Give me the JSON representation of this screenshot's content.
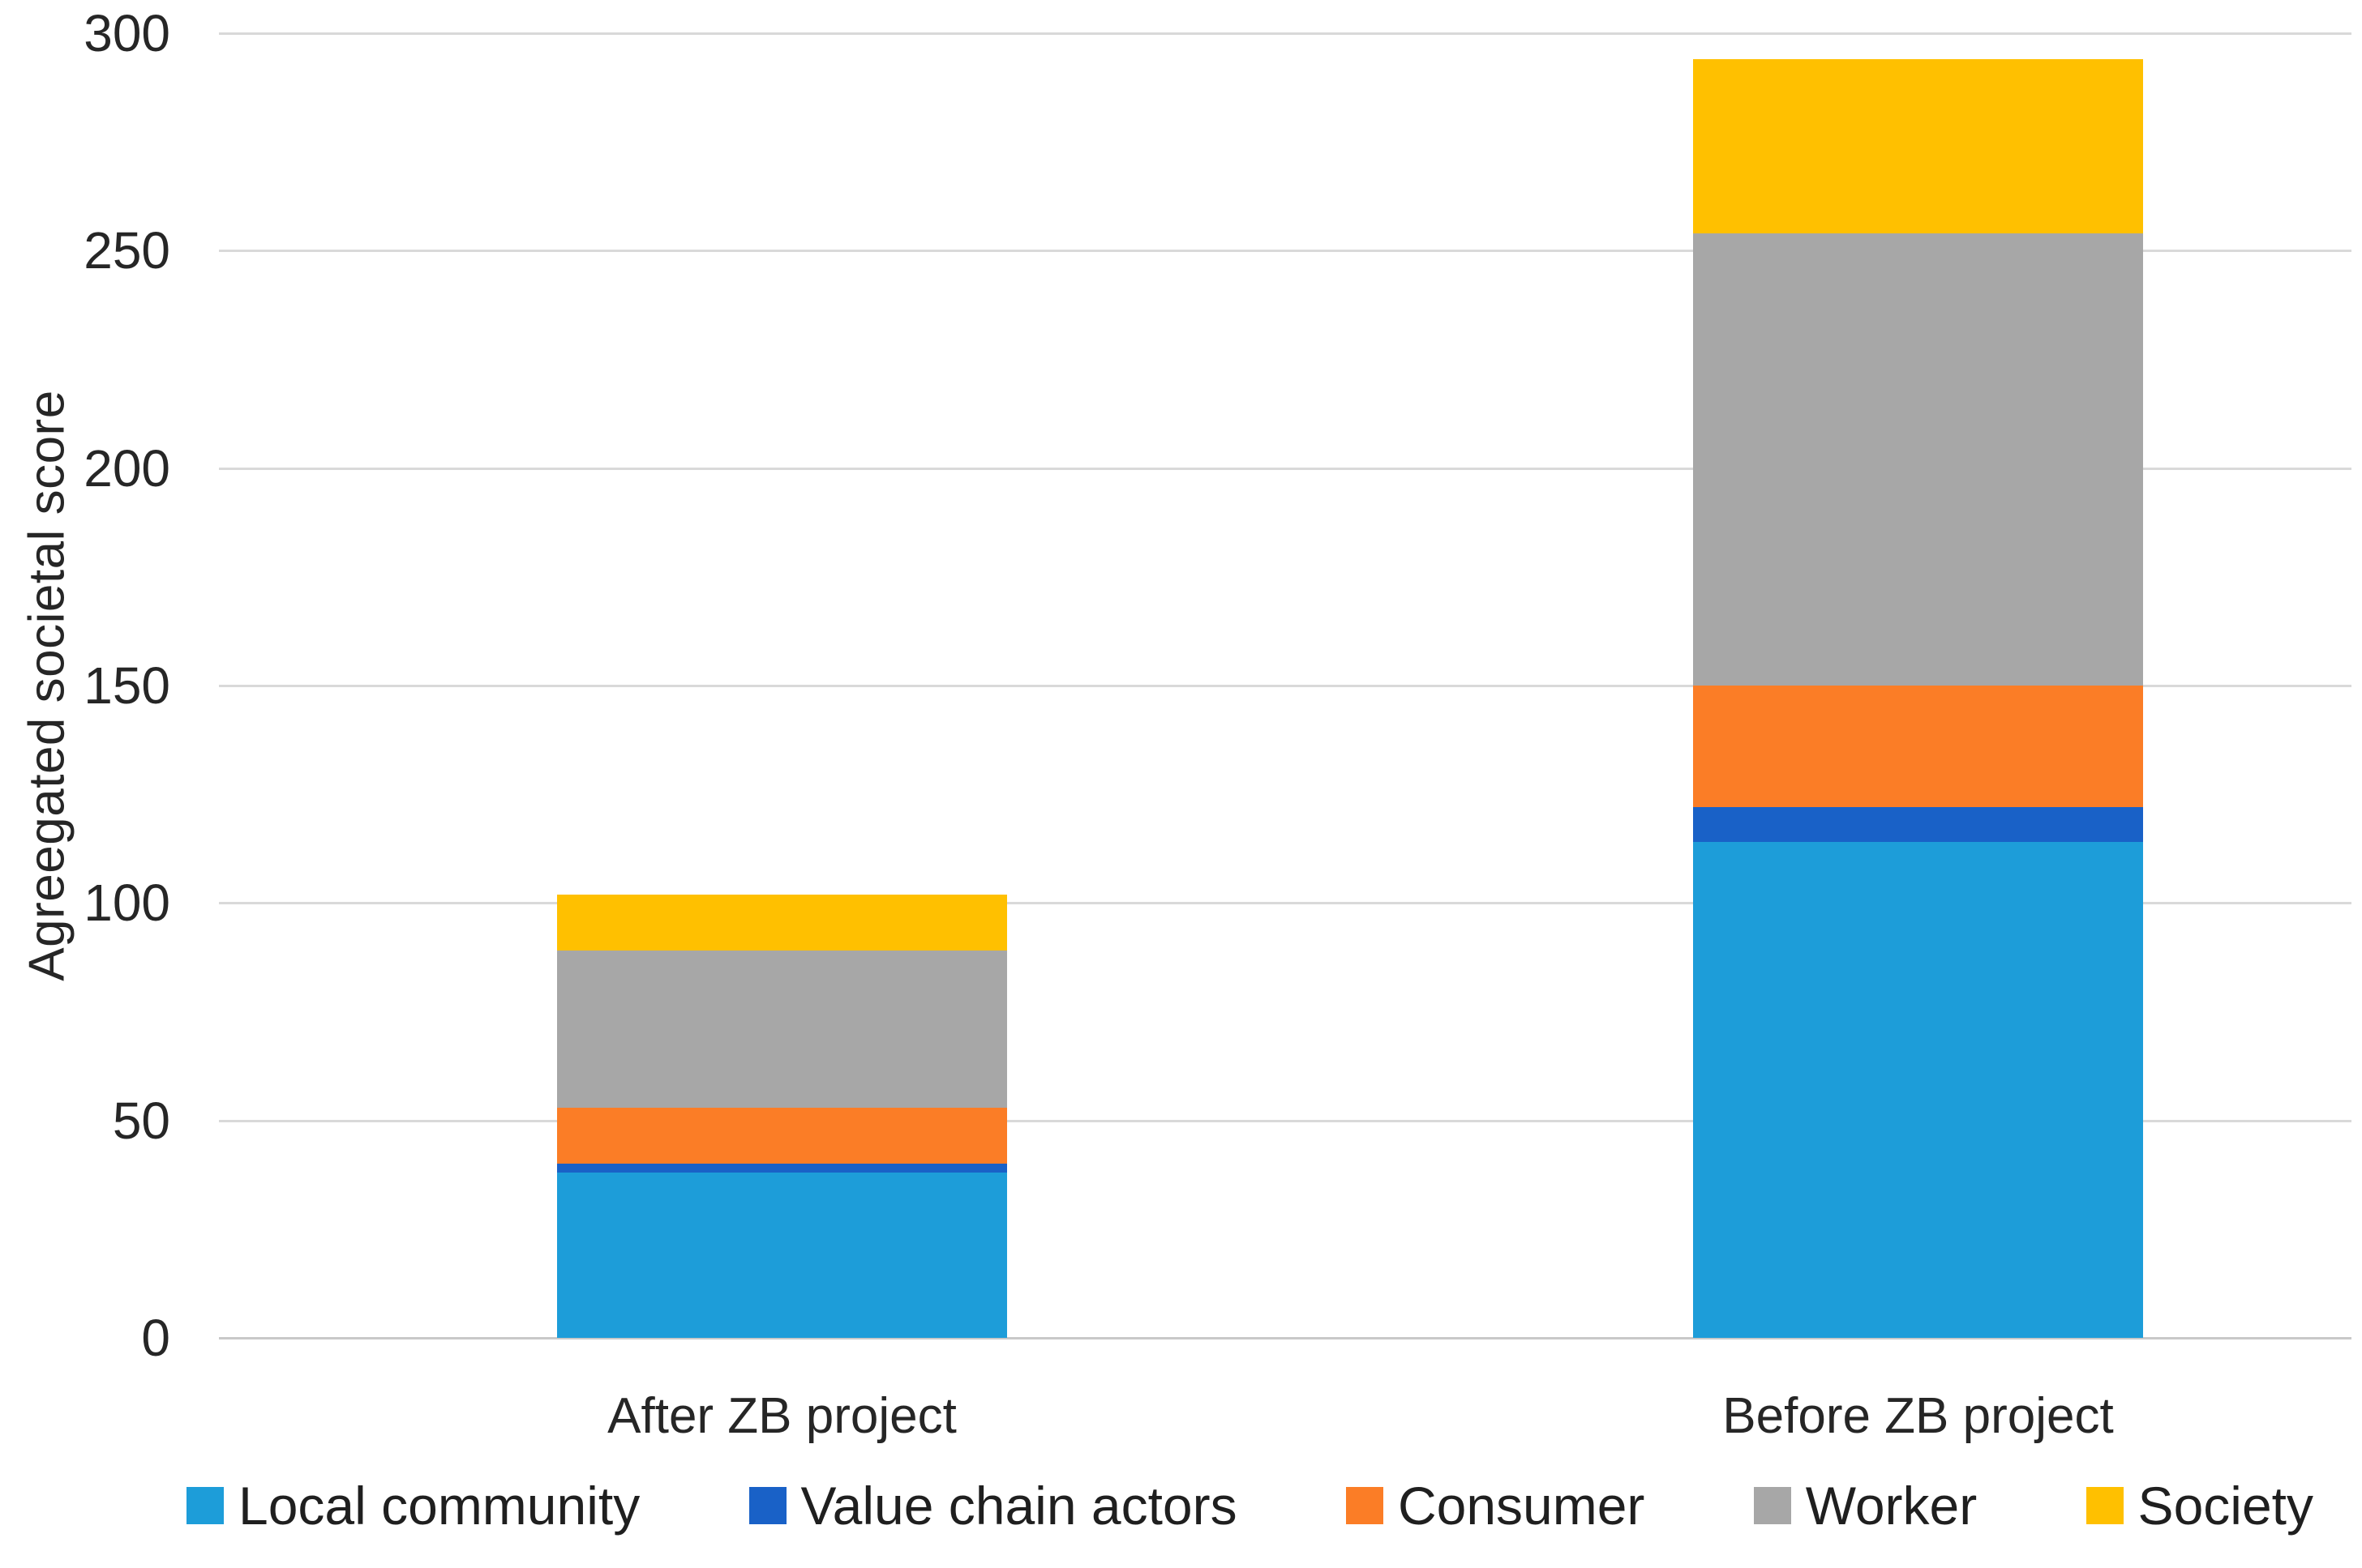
{
  "chart_data": {
    "type": "bar",
    "stacked": true,
    "categories": [
      "After ZB project",
      "Before ZB project"
    ],
    "series": [
      {
        "name": "Local community",
        "color": "#1d9dd9",
        "values": [
          38,
          114
        ]
      },
      {
        "name": "Value chain actors",
        "color": "#1961c7",
        "values": [
          2,
          8
        ]
      },
      {
        "name": "Consumer",
        "color": "#fb7d26",
        "values": [
          13,
          28
        ]
      },
      {
        "name": "Worker",
        "color": "#a7a7a7",
        "values": [
          36,
          104
        ]
      },
      {
        "name": "Society",
        "color": "#ffc000",
        "values": [
          13,
          40
        ]
      }
    ],
    "ylabel": "Agreegated societal score",
    "yticks": [
      "0",
      "50",
      "100",
      "150",
      "200",
      "250",
      "300"
    ],
    "ylim": [
      0,
      300
    ],
    "grid": true,
    "gridline_color": "#d9d9d9",
    "legend_position": "bottom",
    "legend": [
      "Local community",
      "Value chain actors",
      "Consumer",
      "Worker",
      "Society"
    ]
  }
}
